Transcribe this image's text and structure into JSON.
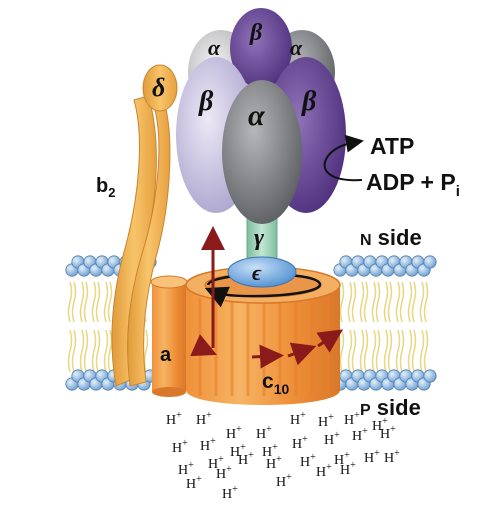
{
  "subunits": {
    "delta": "δ",
    "alpha_left": "α",
    "beta_top": "β",
    "alpha_right": "α",
    "beta_left": "β",
    "alpha_center": "α",
    "beta_right": "β",
    "gamma": "γ",
    "epsilon": "ϵ",
    "a": "a",
    "b2_base": "b",
    "b2_sub": "2",
    "c10_base": "c",
    "c10_sub": "10"
  },
  "reaction": {
    "product": "ATP",
    "reactant": "ADP + P",
    "reactant_sub": "i"
  },
  "membrane_sides": {
    "n_side_small": "N",
    "n_side": " side",
    "p_side_small": "P",
    "p_side": " side"
  },
  "protons": {
    "h": "H",
    "plus": "+"
  },
  "colors": {
    "orange": "#f5a544",
    "orange_dark": "#d9782a",
    "purple_light": "#c6c0dc",
    "purple_dark": "#5e3f8c",
    "gray": "#7b7c80",
    "green": "#9ccfb5",
    "blue": "#6fa8df",
    "arrow_red": "#8b1a1a",
    "membrane_head": "#8fb7de"
  }
}
